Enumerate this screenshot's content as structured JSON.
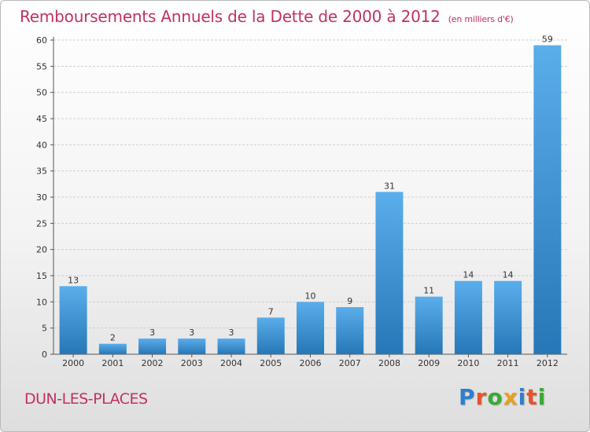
{
  "title": "Remboursements Annuels de la Dette de 2000 à 2012",
  "unit_note": "(en milliers d'€)",
  "commune": "DUN-LES-PLACES",
  "logo": {
    "text": "Proxiti",
    "letter_colors": [
      "#2e7fcc",
      "#e8532a",
      "#3aaa35",
      "#e8a020",
      "#2e7fcc",
      "#e8532a",
      "#3aaa35"
    ]
  },
  "colors": {
    "title": "#c1325d",
    "bar_top": "#5aaeea",
    "bar_bottom": "#2677b7",
    "grid": "#cfcfcf"
  },
  "chart_data": {
    "type": "bar",
    "title": "Remboursements Annuels de la Dette de 2000 à 2012",
    "xlabel": "",
    "ylabel": "",
    "categories": [
      "2000",
      "2001",
      "2002",
      "2003",
      "2004",
      "2005",
      "2006",
      "2007",
      "2008",
      "2009",
      "2010",
      "2011",
      "2012"
    ],
    "values": [
      13,
      2,
      3,
      3,
      3,
      7,
      10,
      9,
      31,
      11,
      14,
      14,
      59
    ],
    "ylim": [
      0,
      60
    ],
    "yticks": [
      0,
      5,
      10,
      15,
      20,
      25,
      30,
      35,
      40,
      45,
      50,
      55,
      60
    ],
    "grid": true,
    "legend": "none",
    "data_labels": true
  }
}
